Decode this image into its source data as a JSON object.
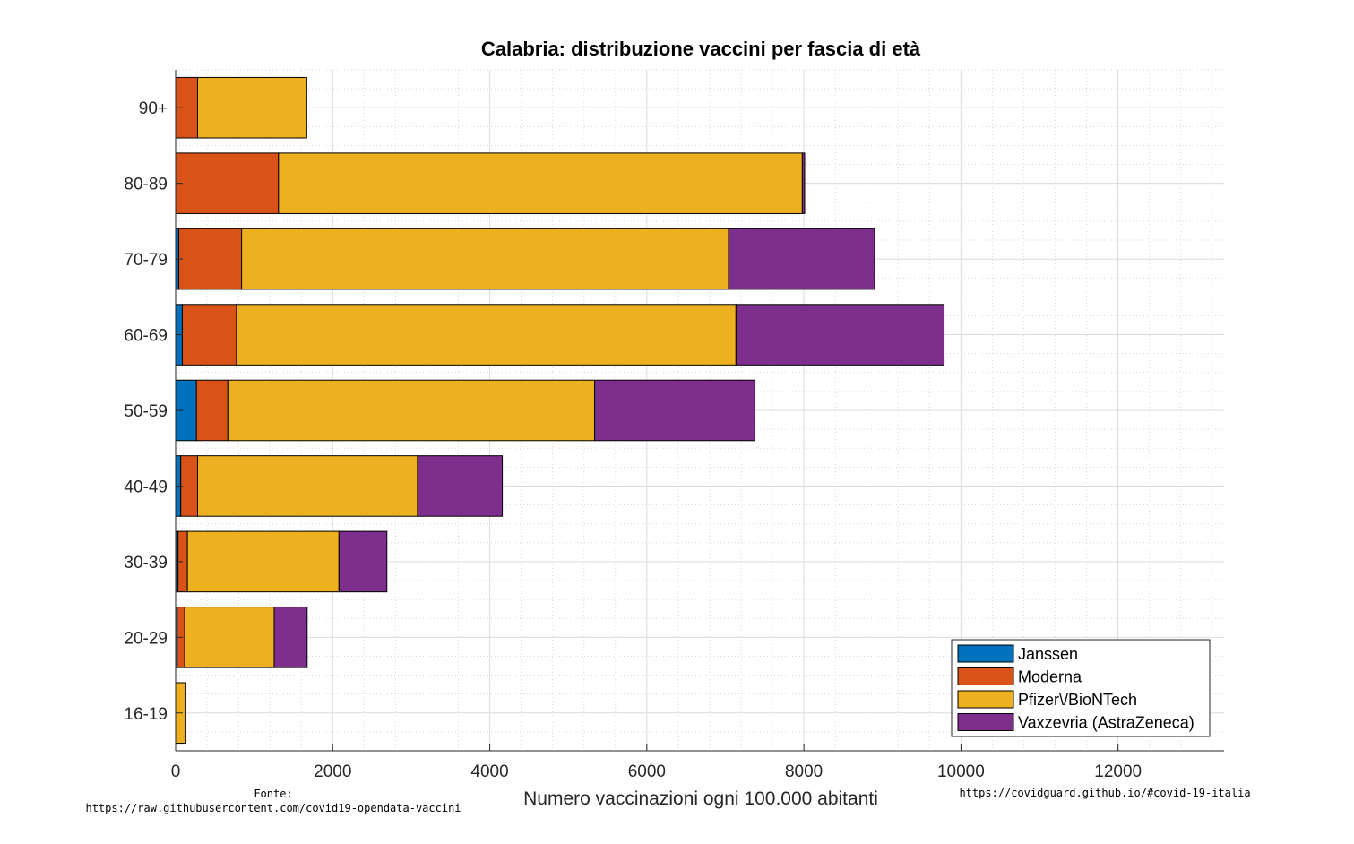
{
  "chart_data": {
    "type": "bar",
    "orientation": "horizontal",
    "stacked": true,
    "title": "Calabria: distribuzione vaccini per fascia di età",
    "xlabel": "Numero vaccinazioni ogni 100.000 abitanti",
    "ylabel": "",
    "xlim": [
      0,
      13350
    ],
    "xticks": [
      "0",
      "2000",
      "4000",
      "6000",
      "8000",
      "10000",
      "12000"
    ],
    "xtick_values": [
      0,
      2000,
      4000,
      6000,
      8000,
      10000,
      12000
    ],
    "grid": true,
    "minor_grid": true,
    "legend_position": "bottom-right",
    "categories": [
      "90+",
      "80-89",
      "70-79",
      "60-69",
      "50-59",
      "40-49",
      "30-39",
      "20-29",
      "16-19"
    ],
    "series": [
      {
        "name": "Janssen",
        "color": "#0072BD",
        "values": [
          0,
          0,
          40,
          85,
          265,
          65,
          30,
          20,
          0
        ]
      },
      {
        "name": "Moderna",
        "color": "#D95319",
        "values": [
          280,
          1310,
          800,
          690,
          400,
          215,
          120,
          95,
          0
        ]
      },
      {
        "name": "Pfizer\\/BioNTech",
        "color": "#EDB120",
        "values": [
          1390,
          6670,
          6200,
          6360,
          4670,
          2800,
          1930,
          1140,
          130
        ]
      },
      {
        "name": "Vaxzevria (AstraZeneca)",
        "color": "#7E2F8E",
        "values": [
          0,
          30,
          1860,
          2650,
          2040,
          1080,
          610,
          420,
          0
        ]
      }
    ]
  },
  "footer": {
    "source_label": "Fonte:",
    "source_url": "https://raw.githubusercontent.com/covid19-opendata-vaccini",
    "site_url": "https://covidguard.github.io/#covid-19-italia"
  }
}
